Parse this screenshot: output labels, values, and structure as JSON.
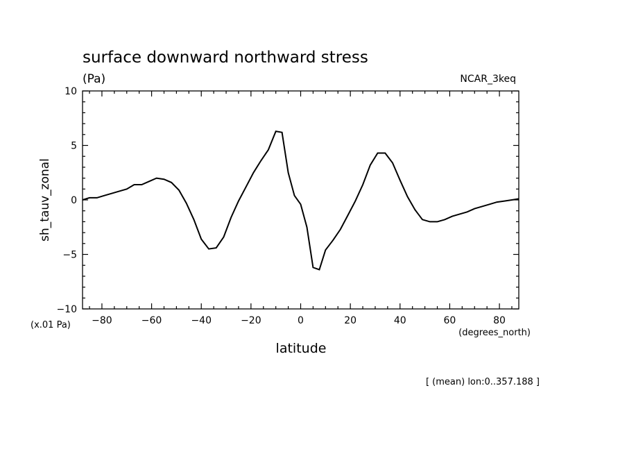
{
  "chart_data": {
    "type": "line",
    "title": "surface downward northward stress",
    "units": "(Pa)",
    "model_label": "NCAR_3keq",
    "ylabel": "sh_tauv_zonal",
    "xlabel": "latitude",
    "x_units": "(degrees_north)",
    "y_scale_note": "(x.01 Pa)",
    "footnote": "[ (mean) lon:0..357.188 ]",
    "xlim": [
      -87.8,
      87.8
    ],
    "ylim": [
      -10,
      10
    ],
    "x_ticks": [
      -80,
      -60,
      -40,
      -20,
      0,
      20,
      40,
      60,
      80
    ],
    "y_ticks": [
      -10,
      -5,
      0,
      5,
      10
    ],
    "line_color": "#000000",
    "grid": false,
    "series": [
      {
        "x": [
          -87.8,
          -85,
          -82,
          -79,
          -76,
          -73,
          -70,
          -67,
          -64,
          -61,
          -58,
          -55,
          -52,
          -49,
          -46,
          -43,
          -40,
          -37,
          -34,
          -31,
          -28,
          -25,
          -22,
          -19,
          -16,
          -13,
          -10,
          -7.5,
          -5,
          -2.5,
          0,
          2.5,
          5,
          7.5,
          10,
          13,
          16,
          19,
          22,
          25,
          28,
          31,
          34,
          37,
          40,
          43,
          46,
          49,
          52,
          55,
          58,
          61,
          64,
          67,
          70,
          73,
          76,
          79,
          82,
          85,
          87.8
        ],
        "y": [
          0,
          0.2,
          0.2,
          0.4,
          0.6,
          0.8,
          1.0,
          1.4,
          1.4,
          1.7,
          2.0,
          1.9,
          1.6,
          0.9,
          -0.3,
          -1.8,
          -3.6,
          -4.5,
          -4.4,
          -3.4,
          -1.6,
          -0.1,
          1.2,
          2.5,
          3.6,
          4.6,
          6.3,
          6.2,
          2.5,
          0.4,
          -0.4,
          -2.5,
          -6.2,
          -6.4,
          -4.6,
          -3.7,
          -2.7,
          -1.4,
          -0.1,
          1.4,
          3.2,
          4.3,
          4.3,
          3.4,
          1.8,
          0.3,
          -0.9,
          -1.8,
          -2.0,
          -2.0,
          -1.8,
          -1.5,
          -1.3,
          -1.1,
          -0.8,
          -0.6,
          -0.4,
          -0.2,
          -0.1,
          0,
          0.1
        ]
      }
    ]
  }
}
